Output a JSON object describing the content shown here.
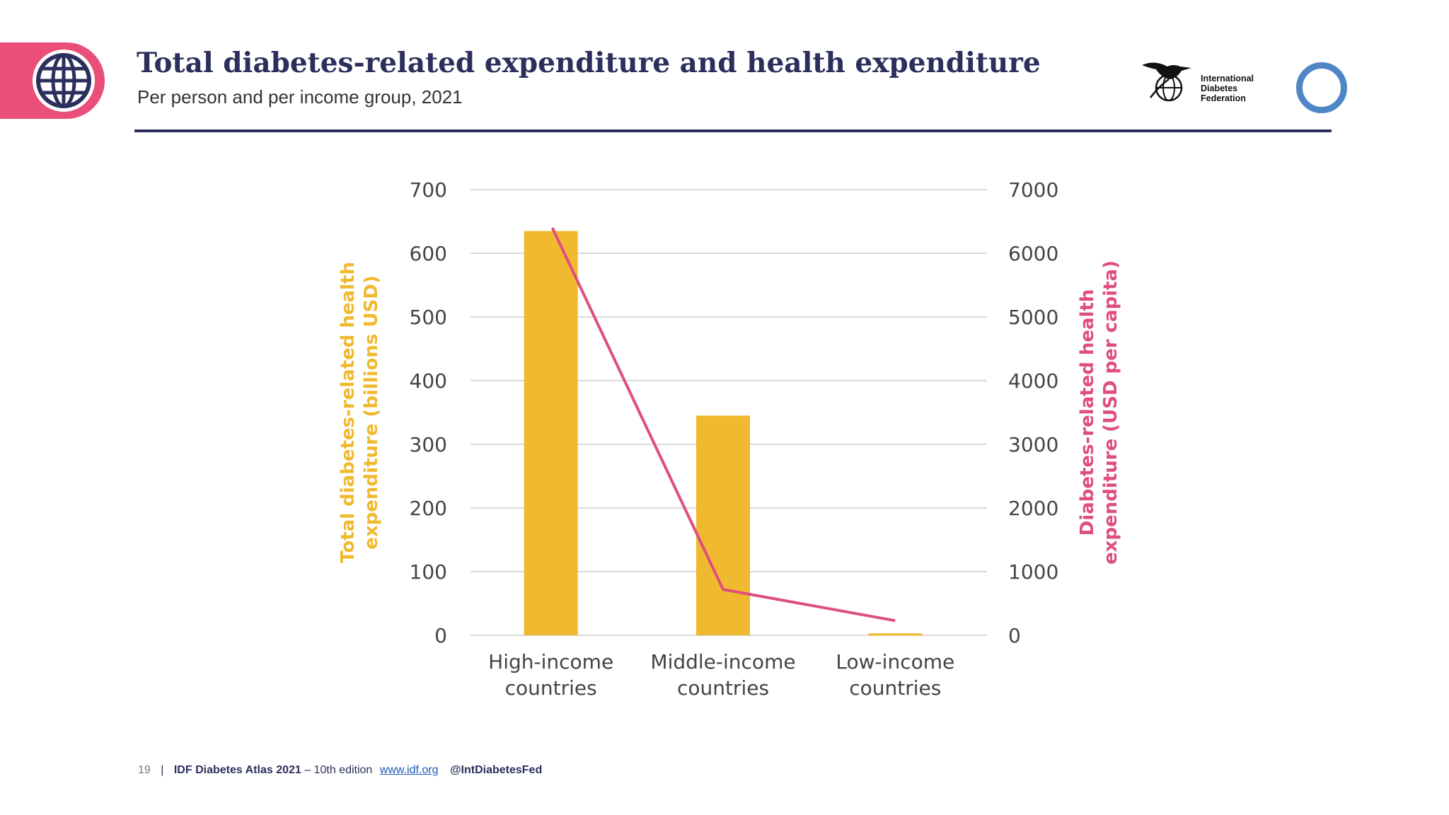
{
  "header": {
    "title": "Total diabetes-related expenditure and health expenditure",
    "subtitle": "Per person and per income group, 2021"
  },
  "logo": {
    "lines": [
      "International",
      "Diabetes",
      "Federation"
    ]
  },
  "footer": {
    "page_number": "19",
    "separator": "|",
    "atlas": "IDF Diabetes Atlas 2021",
    "edition": "– 10th edition",
    "link": "www.idf.org",
    "handle": "@IntDiabetesFed"
  },
  "colors": {
    "accent_pink": "#e94f78",
    "navy": "#2b2f5c",
    "bar": "#f0b92f",
    "line": "#de4f7c",
    "blue_circle": "#4f86c6"
  },
  "chart_data": {
    "type": "bar",
    "categories": [
      [
        "High-income",
        "countries"
      ],
      [
        "Middle-income",
        "countries"
      ],
      [
        "Low-income",
        "countries"
      ]
    ],
    "series": [
      {
        "type": "bar",
        "axis": "left",
        "values": [
          635,
          345,
          3
        ]
      },
      {
        "type": "line",
        "axis": "right",
        "values": [
          6400,
          720,
          230
        ]
      }
    ],
    "left_axis": {
      "label": [
        "Total diabetes-related health",
        "expenditure (billions USD)"
      ],
      "ticks": [
        "0",
        "100",
        "200",
        "300",
        "400",
        "500",
        "600",
        "700"
      ],
      "ylim": [
        0,
        700
      ]
    },
    "right_axis": {
      "label": [
        "Diabetes-related health",
        "expenditure (USD per capita)"
      ],
      "ticks": [
        "0",
        "1000",
        "2000",
        "3000",
        "4000",
        "5000",
        "6000",
        "7000"
      ],
      "ylim": [
        0,
        7000
      ]
    },
    "grid": true
  }
}
